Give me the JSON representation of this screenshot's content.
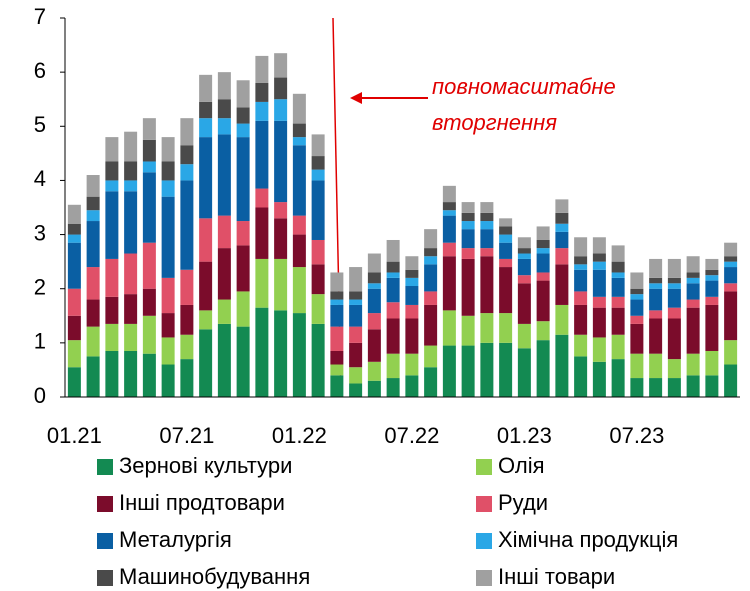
{
  "chart_data": {
    "type": "stacked_bar",
    "annotation": [
      "повномасштабне",
      "вторгнення"
    ],
    "categories": [
      "01.21",
      null,
      null,
      null,
      null,
      null,
      "07.21",
      null,
      null,
      null,
      null,
      null,
      "01.22",
      null,
      null,
      null,
      null,
      null,
      "07.22",
      null,
      null,
      null,
      null,
      null,
      "01.23",
      null,
      null,
      null,
      null,
      null,
      "07.23",
      null,
      null,
      null,
      null,
      null
    ],
    "ylim": [
      0,
      7
    ],
    "yticks": [
      0,
      1,
      2,
      3,
      4,
      5,
      6,
      7
    ],
    "series": [
      {
        "name": "Зернові культури",
        "color": "#138a52",
        "values": [
          0.55,
          0.75,
          0.85,
          0.85,
          0.8,
          0.6,
          0.7,
          1.25,
          1.35,
          1.3,
          1.65,
          1.6,
          1.55,
          1.35,
          0.4,
          0.25,
          0.3,
          0.35,
          0.4,
          0.55,
          0.95,
          0.95,
          1.0,
          1.0,
          0.9,
          1.05,
          1.15,
          0.75,
          0.65,
          0.7,
          0.35,
          0.35,
          0.35,
          0.4,
          0.4,
          0.6
        ]
      },
      {
        "name": "Олія",
        "color": "#92d050",
        "values": [
          0.5,
          0.55,
          0.5,
          0.5,
          0.7,
          0.5,
          0.45,
          0.35,
          0.45,
          0.65,
          0.9,
          0.95,
          0.85,
          0.55,
          0.2,
          0.3,
          0.35,
          0.45,
          0.4,
          0.4,
          0.65,
          0.55,
          0.55,
          0.55,
          0.45,
          0.35,
          0.55,
          0.4,
          0.45,
          0.45,
          0.45,
          0.45,
          0.35,
          0.4,
          0.45,
          0.45
        ]
      },
      {
        "name": "Інші продтовари",
        "color": "#7b0c2b",
        "values": [
          0.45,
          0.5,
          0.5,
          0.55,
          0.5,
          0.45,
          0.55,
          0.9,
          0.95,
          0.85,
          0.95,
          0.75,
          0.6,
          0.55,
          0.25,
          0.45,
          0.6,
          0.65,
          0.65,
          0.75,
          1.0,
          1.05,
          1.05,
          0.85,
          0.75,
          0.75,
          0.75,
          0.55,
          0.55,
          0.5,
          0.55,
          0.65,
          0.75,
          0.85,
          0.85,
          0.9
        ]
      },
      {
        "name": "Руди",
        "color": "#e05068",
        "values": [
          0.5,
          0.6,
          0.7,
          0.75,
          0.85,
          0.65,
          0.65,
          0.8,
          0.6,
          0.45,
          0.35,
          0.3,
          0.35,
          0.45,
          0.45,
          0.3,
          0.3,
          0.3,
          0.25,
          0.25,
          0.25,
          0.2,
          0.15,
          0.15,
          0.15,
          0.15,
          0.3,
          0.25,
          0.2,
          0.2,
          0.15,
          0.15,
          0.2,
          0.15,
          0.15,
          0.15
        ]
      },
      {
        "name": "Металургія",
        "color": "#0a5fa3",
        "values": [
          0.85,
          0.85,
          1.25,
          1.15,
          1.3,
          1.5,
          1.65,
          1.5,
          1.5,
          1.55,
          1.25,
          1.5,
          1.3,
          1.1,
          0.4,
          0.4,
          0.45,
          0.45,
          0.35,
          0.5,
          0.5,
          0.35,
          0.35,
          0.3,
          0.3,
          0.35,
          0.3,
          0.4,
          0.5,
          0.35,
          0.3,
          0.4,
          0.35,
          0.3,
          0.3,
          0.3
        ]
      },
      {
        "name": "Хімічна продукція",
        "color": "#2aa7e6",
        "values": [
          0.15,
          0.2,
          0.2,
          0.2,
          0.2,
          0.3,
          0.3,
          0.35,
          0.3,
          0.25,
          0.35,
          0.4,
          0.15,
          0.2,
          0.1,
          0.1,
          0.1,
          0.1,
          0.15,
          0.15,
          0.1,
          0.15,
          0.15,
          0.15,
          0.1,
          0.1,
          0.15,
          0.1,
          0.15,
          0.1,
          0.1,
          0.1,
          0.1,
          0.1,
          0.1,
          0.1
        ]
      },
      {
        "name": "Машинобудування",
        "color": "#4a4a4a",
        "values": [
          0.2,
          0.25,
          0.35,
          0.35,
          0.4,
          0.35,
          0.35,
          0.3,
          0.35,
          0.3,
          0.35,
          0.4,
          0.25,
          0.25,
          0.15,
          0.15,
          0.2,
          0.2,
          0.15,
          0.15,
          0.15,
          0.15,
          0.15,
          0.15,
          0.1,
          0.15,
          0.2,
          0.15,
          0.15,
          0.2,
          0.1,
          0.1,
          0.1,
          0.1,
          0.1,
          0.1
        ]
      },
      {
        "name": "Інші товари",
        "color": "#a0a0a0",
        "values": [
          0.35,
          0.4,
          0.45,
          0.55,
          0.4,
          0.45,
          0.5,
          0.5,
          0.5,
          0.5,
          0.5,
          0.45,
          0.55,
          0.4,
          0.35,
          0.45,
          0.35,
          0.4,
          0.25,
          0.35,
          0.3,
          0.2,
          0.2,
          0.15,
          0.2,
          0.25,
          0.25,
          0.35,
          0.3,
          0.3,
          0.3,
          0.35,
          0.35,
          0.3,
          0.2,
          0.25
        ]
      }
    ]
  }
}
